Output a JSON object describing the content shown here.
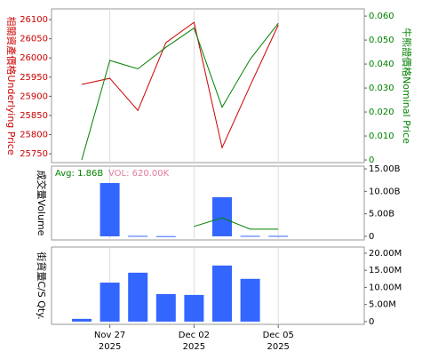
{
  "chart_data": [
    {
      "type": "line",
      "ylabel": "相關資產價格Underlying Price",
      "y2label": "牛熊證價格Nominal Price",
      "ylim": [
        25727,
        26128
      ],
      "yticks": [
        25750,
        25800,
        25850,
        25900,
        25950,
        26000,
        26050,
        26100
      ],
      "ycolor": "#cc0000",
      "y2lim": [
        -0.0011,
        0.063
      ],
      "y2ticks": [
        0,
        {
          "value": 0.01,
          "label": "0.010"
        },
        {
          "value": 0.02,
          "label": "0.020"
        },
        {
          "value": 0.03,
          "label": "0.030"
        },
        {
          "value": 0.04,
          "label": "0.040"
        },
        {
          "value": 0.05,
          "label": "0.050"
        },
        {
          "value": 0.06,
          "label": "0.060"
        }
      ],
      "y2color": "#008000",
      "series": [
        {
          "type": "line",
          "color": "#cc0000",
          "values": [
            25931,
            25947,
            25863,
            26040,
            26093,
            25766,
            25928,
            26086
          ]
        },
        {
          "type": "line",
          "color": "#008000",
          "axis": "y2",
          "values": [
            0,
            0.0415,
            0.038,
            0.047,
            0.055,
            0.022,
            0.042,
            0.057
          ]
        }
      ]
    },
    {
      "type": "bar",
      "ylabel": "成交量Volume",
      "ylim": [
        -800000000,
        15600000000
      ],
      "yticks": [
        0,
        {
          "value": 5000000000,
          "label": "5.00B"
        },
        {
          "value": 10000000000,
          "label": "10.00B"
        },
        {
          "value": 15000000000,
          "label": "15.00B"
        }
      ],
      "annotations": [
        {
          "text": "Avg: 1.86B",
          "color": "#008000"
        },
        {
          "text": "VOL: 620.00K",
          "color": "#e07aa0"
        }
      ],
      "series": [
        {
          "type": "bar",
          "color": "#3366ff",
          "values": [
            null,
            11850000000,
            100000000,
            50000000,
            null,
            8700000000,
            100000000,
            100000000
          ]
        },
        {
          "type": "line",
          "color": "#008000",
          "values": [
            null,
            null,
            null,
            null,
            2200000000,
            4100000000,
            1600000000,
            1600000000
          ]
        }
      ]
    },
    {
      "type": "bar",
      "ylabel": "街貨量C/S Qty.",
      "ylim": [
        -800000,
        21800000
      ],
      "yticks": [
        0,
        {
          "value": 5000000,
          "label": "5.00M"
        },
        {
          "value": 10000000,
          "label": "10.00M"
        },
        {
          "value": 15000000,
          "label": "15.00M"
        },
        {
          "value": 20000000,
          "label": "20.00M"
        }
      ],
      "categories": [
        null,
        "Nov 27",
        null,
        null,
        "Dec 02",
        null,
        null,
        "Dec 05"
      ],
      "category_years": [
        null,
        "2025",
        null,
        null,
        "2025",
        null,
        null,
        "2025"
      ],
      "series": [
        {
          "type": "bar",
          "color": "#3366ff",
          "values": [
            800000,
            11400000,
            14300000,
            8050000,
            7800000,
            16400000,
            12500000,
            null
          ]
        }
      ]
    }
  ]
}
